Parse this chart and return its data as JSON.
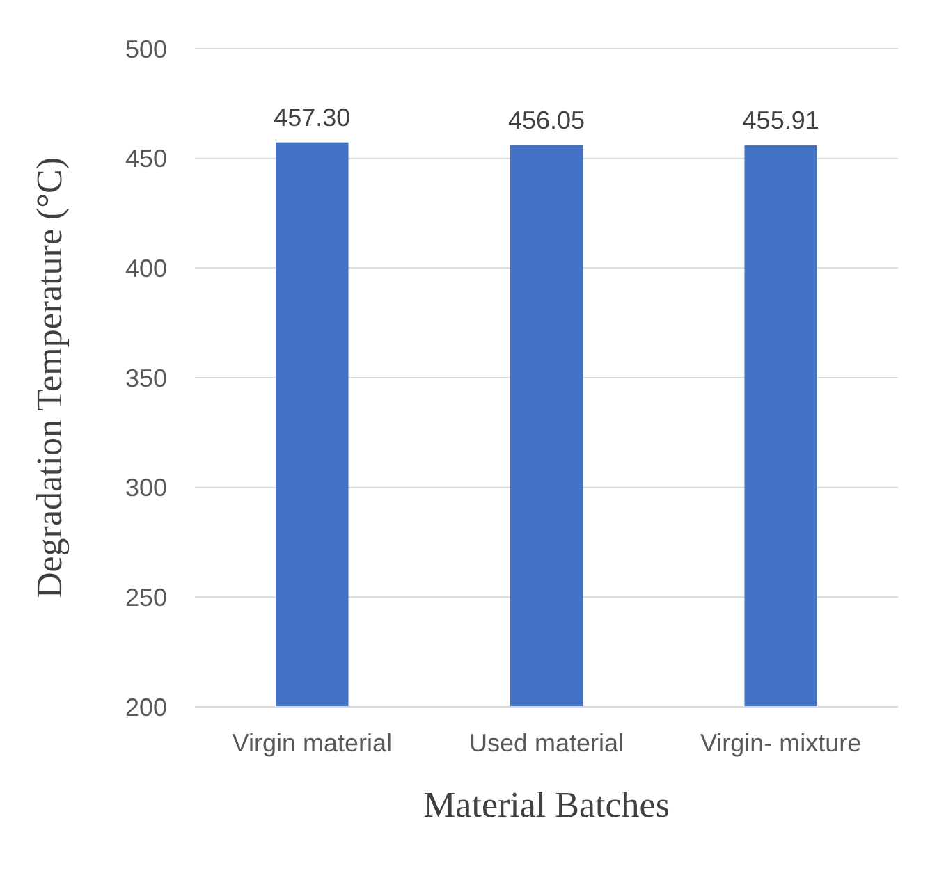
{
  "chart_data": {
    "type": "bar",
    "xlabel": "Material Batches",
    "ylabel": "Degradation Temperature (°C)",
    "categories": [
      "Virgin material",
      "Used material",
      "Virgin- mixture"
    ],
    "values": [
      457.3,
      456.05,
      455.91
    ],
    "value_labels": [
      "457.30",
      "456.05",
      "455.91"
    ],
    "color": "#4472c4",
    "ylim": [
      200,
      500
    ],
    "yticks": [
      200,
      250,
      300,
      350,
      400,
      450,
      500
    ],
    "grid": true
  }
}
